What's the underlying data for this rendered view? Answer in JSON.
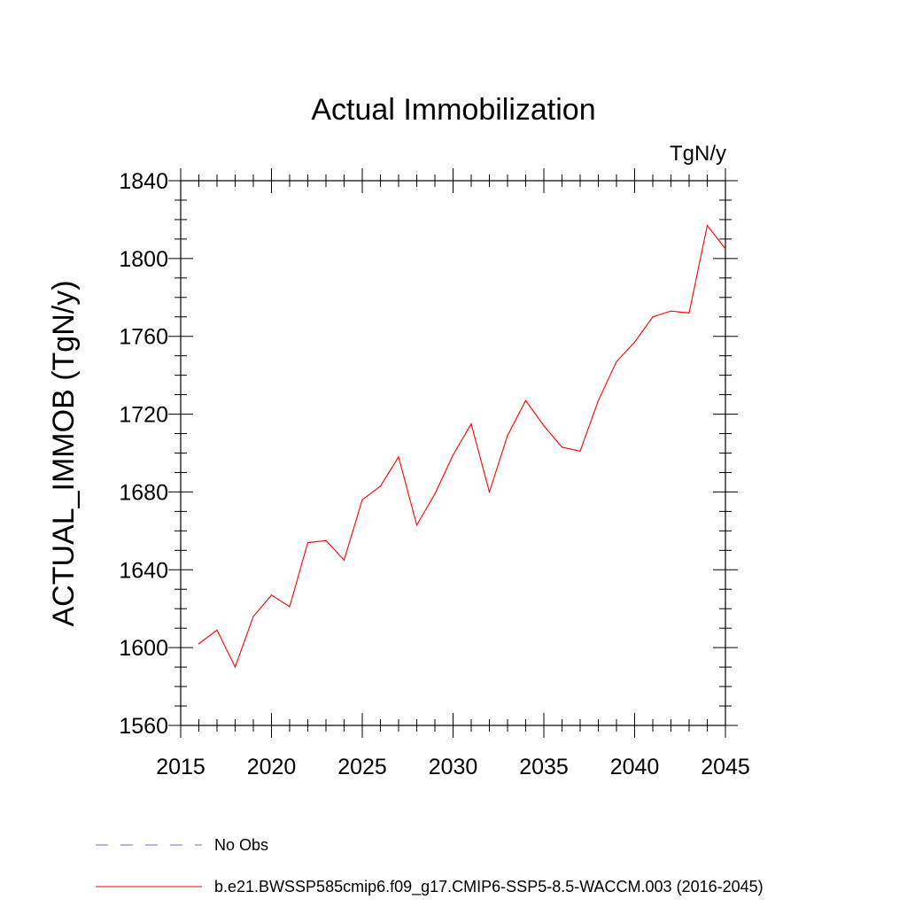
{
  "chart_data": {
    "type": "line",
    "title": "Actual Immobilization",
    "units_label": "TgN/y",
    "xlabel": "",
    "ylabel": "ACTUAL_IMMOB  (TgN/y)",
    "xlim": [
      2015,
      2045
    ],
    "ylim": [
      1560,
      1840
    ],
    "x_ticks": [
      2015,
      2020,
      2025,
      2030,
      2035,
      2040,
      2045
    ],
    "y_ticks": [
      1560,
      1600,
      1640,
      1680,
      1720,
      1760,
      1800,
      1840
    ],
    "grid": false,
    "legend_position": "bottom-left",
    "series": [
      {
        "name": "b.e21.BWSSP585cmip6.f09_g17.CMIP6-SSP5-8.5-WACCM.003 (2016-2045)",
        "color": "#ff0000",
        "style": "solid",
        "x": [
          2016,
          2017,
          2018,
          2019,
          2020,
          2021,
          2022,
          2023,
          2024,
          2025,
          2026,
          2027,
          2028,
          2029,
          2030,
          2031,
          2032,
          2033,
          2034,
          2035,
          2036,
          2037,
          2038,
          2039,
          2040,
          2041,
          2042,
          2043,
          2044,
          2045
        ],
        "y": [
          1602,
          1609,
          1590,
          1616,
          1627,
          1621,
          1654,
          1655,
          1645,
          1676,
          1683,
          1698,
          1663,
          1679,
          1699,
          1715,
          1680,
          1709,
          1727,
          1714,
          1703,
          1701,
          1727,
          1747,
          1757,
          1770,
          1773,
          1772,
          1817,
          1805
        ]
      }
    ],
    "legend": [
      {
        "label": "No Obs",
        "color": "#7a6fc4",
        "style": "dashed"
      },
      {
        "label": "b.e21.BWSSP585cmip6.f09_g17.CMIP6-SSP5-8.5-WACCM.003 (2016-2045)",
        "color": "#ff0000",
        "style": "solid"
      }
    ]
  }
}
